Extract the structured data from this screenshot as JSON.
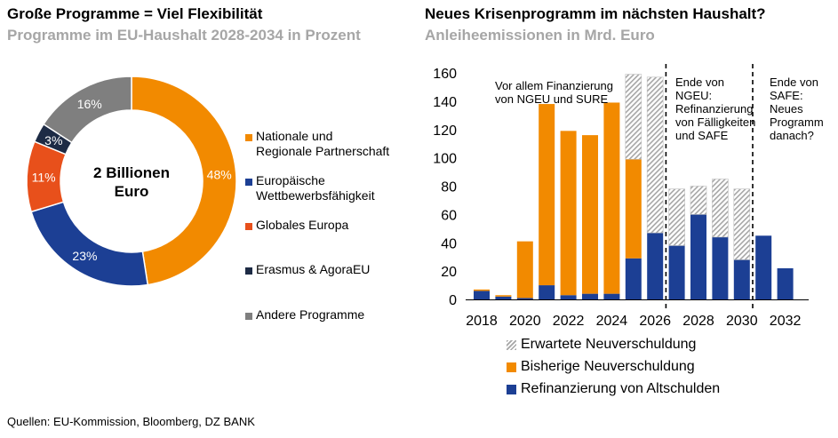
{
  "left": {
    "title": "Große Programme = Viel Flexibilität",
    "subtitle": "Programme im EU-Haushalt 2028-2034 in Prozent"
  },
  "right": {
    "title": "Neues Krisenprogramm im nächsten Haushalt?",
    "subtitle": "Anleiheemissionen in Mrd. Euro"
  },
  "source": "Quellen: EU-Kommission, Bloomberg, DZ BANK",
  "colors": {
    "orange": "#f28a00",
    "navy": "#1c3f94",
    "red": "#e8501b",
    "darknavy": "#1d2b45",
    "gray": "#7f7f7f",
    "hatch": "#a6a6a6"
  },
  "chart_data": [
    {
      "type": "pie",
      "center_label": "2 Billionen\nEuro",
      "slices": [
        {
          "label": "Nationale und\nRegionale Partnerschaft",
          "value": 48,
          "value_label": "48%",
          "color": "#f28a00"
        },
        {
          "label": "Europäische\nWettbewerbsfähigkeit",
          "value": 23,
          "value_label": "23%",
          "color": "#1c3f94"
        },
        {
          "label": "Globales Europa",
          "value": 11,
          "value_label": "11%",
          "color": "#e8501b"
        },
        {
          "label": "Erasmus & AgoraEU",
          "value": 3,
          "value_label": "3%",
          "color": "#1d2b45"
        },
        {
          "label": "Andere Programme",
          "value": 16,
          "value_label": "16%",
          "color": "#7f7f7f"
        }
      ]
    },
    {
      "type": "bar",
      "stacked": true,
      "x": [
        2018,
        2019,
        2020,
        2021,
        2022,
        2023,
        2024,
        2025,
        2026,
        2027,
        2028,
        2029,
        2030,
        2031,
        2032
      ],
      "xticks": [
        "2018",
        "2020",
        "2022",
        "2024",
        "2026",
        "2028",
        "2030",
        "2032"
      ],
      "ylim": [
        0,
        160
      ],
      "yticks": [
        "0",
        "20",
        "40",
        "60",
        "80",
        "100",
        "120",
        "140",
        "160"
      ],
      "series": [
        {
          "name": "Refinanzierung von Altschulden",
          "color": "#1c3f94",
          "values": [
            6,
            2,
            1,
            10,
            3,
            4,
            4,
            29,
            47,
            38,
            60,
            44,
            28,
            45,
            22
          ]
        },
        {
          "name": "Bisherige Neuverschuldung",
          "color": "#f28a00",
          "values": [
            1,
            1,
            40,
            128,
            116,
            112,
            135,
            70,
            0,
            0,
            0,
            0,
            0,
            0,
            0
          ]
        },
        {
          "name": "Erwartete Neuverschuldung",
          "color": "hatch",
          "values": [
            0,
            0,
            0,
            0,
            0,
            0,
            0,
            60,
            110,
            40,
            20,
            41,
            50,
            0,
            0
          ]
        }
      ],
      "legend_order": [
        "Erwartete Neuverschuldung",
        "Bisherige Neuverschuldung",
        "Refinanzierung von Altschulden"
      ],
      "annotations": [
        {
          "text": "Vor allem Finanzierung\nvon NGEU und SURE"
        },
        {
          "text": "Ende von\nNGEU:\nRefinanzierung\nvon Fälligkeiten\nund SAFE"
        },
        {
          "text": "Ende von\nSAFE:\nNeues\nProgramm\ndanach?"
        }
      ]
    }
  ]
}
